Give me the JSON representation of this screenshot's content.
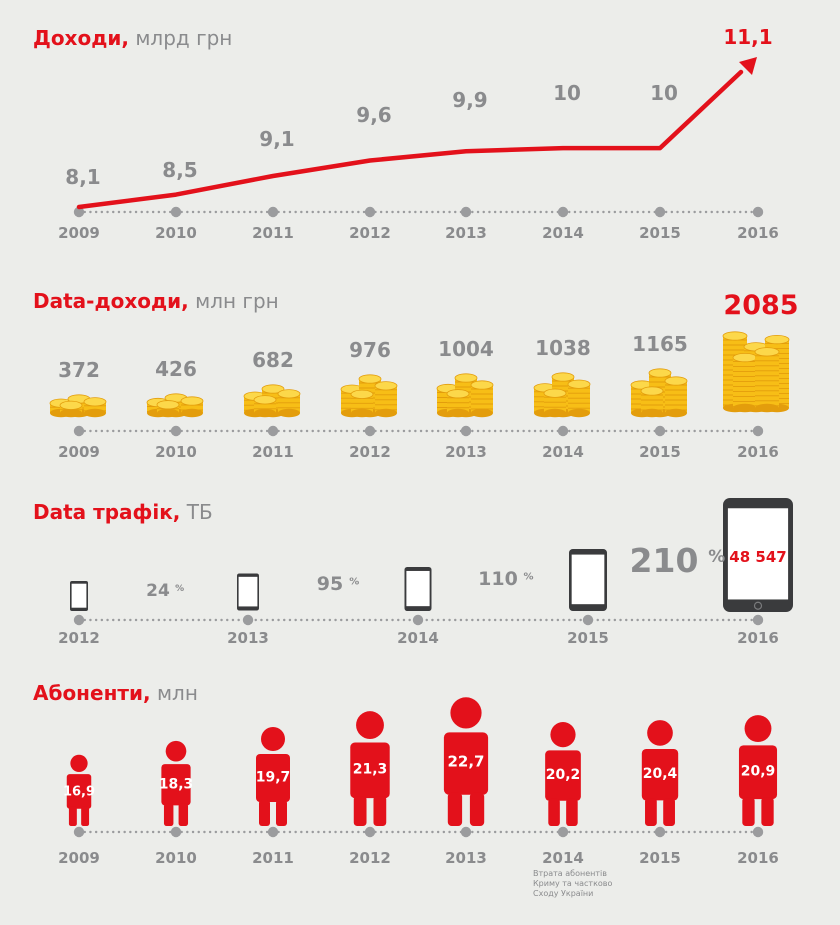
{
  "colors": {
    "accent": "#e3111b",
    "gray_text": "#8a8b8d",
    "axis_dots": "#9b9c9e",
    "coin": "#f7be16",
    "coin_dark": "#e39d0c",
    "coin_light": "#fcd84a",
    "background": "#ecedea",
    "device": "#3a3b3d"
  },
  "sections": {
    "revenue": {
      "title": "Доходи,",
      "unit": "млрд грн"
    },
    "data_revenue": {
      "title": "Data-доходи,",
      "unit": "млн грн"
    },
    "traffic": {
      "title": "Data трафік,",
      "unit": "ТБ"
    },
    "subscribers": {
      "title": "Абоненти,",
      "unit": "млн"
    }
  },
  "chart_data": [
    {
      "id": "revenue",
      "type": "line",
      "title": "Доходи, млрд грн",
      "categories": [
        "2009",
        "2010",
        "2011",
        "2012",
        "2013",
        "2014",
        "2015",
        "2016"
      ],
      "values": [
        8.1,
        8.5,
        9.1,
        9.6,
        9.9,
        10,
        10,
        11.1
      ],
      "value_labels": [
        "8,1",
        "8,5",
        "9,1",
        "9,6",
        "9,9",
        "10",
        "10",
        "11,1"
      ],
      "highlight_last": true
    },
    {
      "id": "data_revenue",
      "type": "bar",
      "title": "Data-доходи, млн грн",
      "categories": [
        "2009",
        "2010",
        "2011",
        "2012",
        "2013",
        "2014",
        "2015",
        "2016"
      ],
      "values": [
        372,
        426,
        682,
        976,
        1004,
        1038,
        1165,
        2085
      ],
      "value_labels": [
        "372",
        "426",
        "682",
        "976",
        "1004",
        "1038",
        "1165",
        "2085"
      ],
      "mark_icon": "coin-stack-icon",
      "highlight_last": true
    },
    {
      "id": "traffic",
      "type": "bar",
      "title": "Data трафік, ТБ",
      "categories": [
        "2012",
        "2013",
        "2014",
        "2015",
        "2016"
      ],
      "growth_labels": [
        "24",
        "95",
        "110",
        "210"
      ],
      "growth_unit": "%",
      "final_value": 48547,
      "final_value_label": "48 547",
      "mark_icon": "smartphone-icon"
    },
    {
      "id": "subscribers",
      "type": "bar",
      "title": "Абоненти, млн",
      "categories": [
        "2009",
        "2010",
        "2011",
        "2012",
        "2013",
        "2014",
        "2015",
        "2016"
      ],
      "values": [
        16.9,
        18.3,
        19.7,
        21.3,
        22.7,
        20.2,
        20.4,
        20.9
      ],
      "value_labels": [
        "16,9",
        "18,3",
        "19,7",
        "21,3",
        "22,7",
        "20,2",
        "20,4",
        "20,9"
      ],
      "mark_icon": "person-icon",
      "annotation": {
        "category": "2014",
        "lines": [
          "Втрата абонентів",
          "Криму та частково",
          "Сходу України"
        ]
      }
    }
  ]
}
